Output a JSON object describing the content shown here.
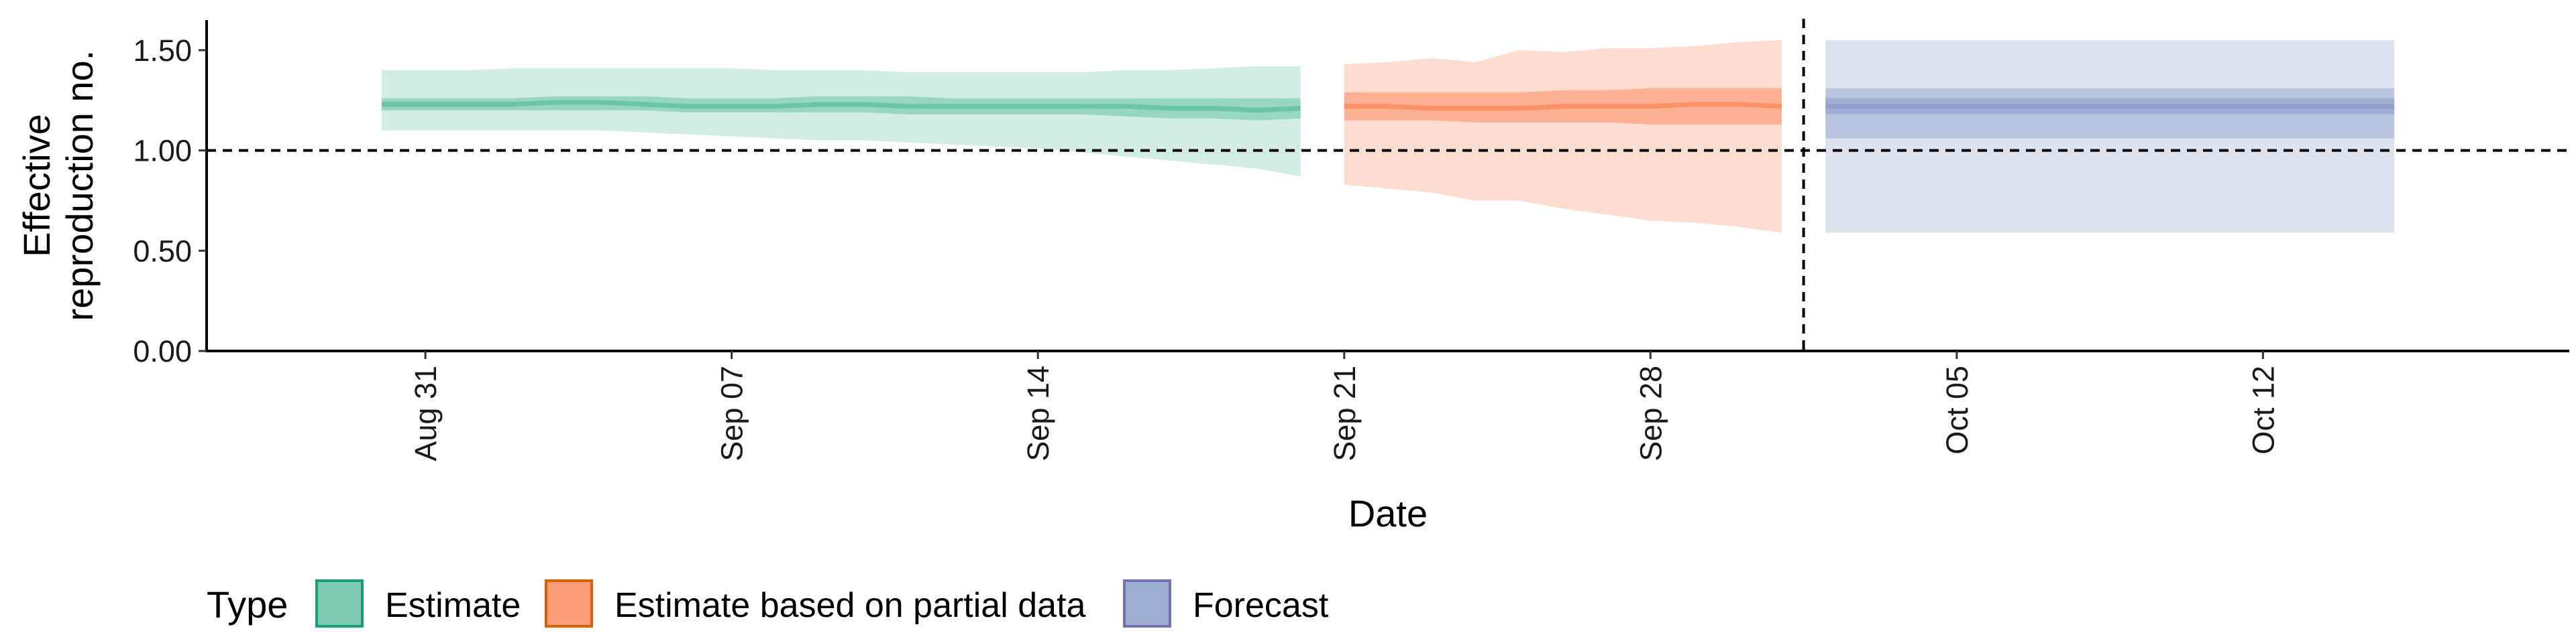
{
  "chart_data": {
    "type": "area",
    "xlabel": "Date",
    "ylabel": [
      "Effective",
      "reproduction no."
    ],
    "x_range": [
      "2020-08-26",
      "2020-10-19"
    ],
    "ylim": [
      0,
      1.65
    ],
    "y_ticks": [
      {
        "value": 0,
        "label": "0.00"
      },
      {
        "value": 0.5,
        "label": "0.50"
      },
      {
        "value": 1,
        "label": "1.00"
      },
      {
        "value": 1.5,
        "label": "1.50"
      }
    ],
    "x_ticks": [
      {
        "date": "2020-08-31",
        "label": "Aug 31"
      },
      {
        "date": "2020-09-07",
        "label": "Sep 07"
      },
      {
        "date": "2020-09-14",
        "label": "Sep 14"
      },
      {
        "date": "2020-09-21",
        "label": "Sep 21"
      },
      {
        "date": "2020-09-28",
        "label": "Sep 28"
      },
      {
        "date": "2020-10-05",
        "label": "Oct 05"
      },
      {
        "date": "2020-10-12",
        "label": "Oct 12"
      }
    ],
    "reference_hline": 1.0,
    "reference_vline": "2020-10-01",
    "legend": {
      "title": "Type",
      "position": "bottom"
    },
    "series": [
      {
        "name": "Estimate",
        "fill_color": "#66c2a5",
        "border_color": "#1b9e77",
        "x": [
          "2020-08-30",
          "2020-08-31",
          "2020-09-01",
          "2020-09-02",
          "2020-09-03",
          "2020-09-04",
          "2020-09-05",
          "2020-09-06",
          "2020-09-07",
          "2020-09-08",
          "2020-09-09",
          "2020-09-10",
          "2020-09-11",
          "2020-09-12",
          "2020-09-13",
          "2020-09-14",
          "2020-09-15",
          "2020-09-16",
          "2020-09-17",
          "2020-09-18",
          "2020-09-19",
          "2020-09-20"
        ],
        "median": [
          1.23,
          1.23,
          1.23,
          1.23,
          1.24,
          1.24,
          1.23,
          1.22,
          1.22,
          1.22,
          1.23,
          1.23,
          1.22,
          1.22,
          1.22,
          1.22,
          1.22,
          1.22,
          1.21,
          1.21,
          1.2,
          1.21
        ],
        "lower_50": [
          1.2,
          1.2,
          1.2,
          1.2,
          1.2,
          1.2,
          1.2,
          1.19,
          1.19,
          1.19,
          1.19,
          1.19,
          1.18,
          1.18,
          1.18,
          1.18,
          1.18,
          1.17,
          1.16,
          1.16,
          1.15,
          1.16
        ],
        "upper_50": [
          1.26,
          1.26,
          1.26,
          1.26,
          1.27,
          1.27,
          1.27,
          1.26,
          1.26,
          1.26,
          1.27,
          1.27,
          1.27,
          1.26,
          1.26,
          1.26,
          1.26,
          1.26,
          1.26,
          1.26,
          1.26,
          1.26
        ],
        "lower_90": [
          1.1,
          1.1,
          1.1,
          1.1,
          1.1,
          1.1,
          1.09,
          1.08,
          1.07,
          1.06,
          1.05,
          1.05,
          1.04,
          1.03,
          1.02,
          1.01,
          0.99,
          0.97,
          0.95,
          0.93,
          0.91,
          0.87
        ],
        "upper_90": [
          1.4,
          1.4,
          1.4,
          1.41,
          1.41,
          1.41,
          1.41,
          1.41,
          1.41,
          1.4,
          1.4,
          1.4,
          1.39,
          1.39,
          1.39,
          1.39,
          1.39,
          1.4,
          1.4,
          1.41,
          1.42,
          1.42
        ]
      },
      {
        "name": "Estimate based on partial data",
        "fill_color": "#fc8d62",
        "border_color": "#d95f02",
        "x": [
          "2020-09-21",
          "2020-09-22",
          "2020-09-23",
          "2020-09-24",
          "2020-09-25",
          "2020-09-26",
          "2020-09-27",
          "2020-09-28",
          "2020-09-29",
          "2020-09-30",
          "2020-10-01"
        ],
        "median": [
          1.22,
          1.22,
          1.21,
          1.21,
          1.21,
          1.22,
          1.22,
          1.22,
          1.23,
          1.23,
          1.22
        ],
        "lower_50": [
          1.15,
          1.15,
          1.15,
          1.14,
          1.14,
          1.14,
          1.14,
          1.13,
          1.13,
          1.13,
          1.13
        ],
        "upper_50": [
          1.29,
          1.29,
          1.29,
          1.29,
          1.29,
          1.3,
          1.3,
          1.31,
          1.31,
          1.31,
          1.31
        ],
        "lower_90": [
          0.83,
          0.81,
          0.79,
          0.75,
          0.75,
          0.71,
          0.68,
          0.65,
          0.64,
          0.62,
          0.59
        ],
        "upper_90": [
          1.43,
          1.44,
          1.46,
          1.44,
          1.5,
          1.49,
          1.51,
          1.51,
          1.52,
          1.54,
          1.55
        ]
      },
      {
        "name": "Forecast",
        "fill_color": "#8da0cb",
        "border_color": "#7570b3",
        "x": [
          "2020-10-02",
          "2020-10-15"
        ],
        "median": [
          1.22,
          1.22
        ],
        "lower_50": [
          1.18,
          1.18
        ],
        "upper_50": [
          1.26,
          1.26
        ],
        "lower_outer": [
          1.06,
          1.06
        ],
        "upper_outer": [
          1.31,
          1.31
        ],
        "lower_90": [
          0.59,
          0.59
        ],
        "upper_90": [
          1.55,
          1.55
        ]
      }
    ]
  }
}
